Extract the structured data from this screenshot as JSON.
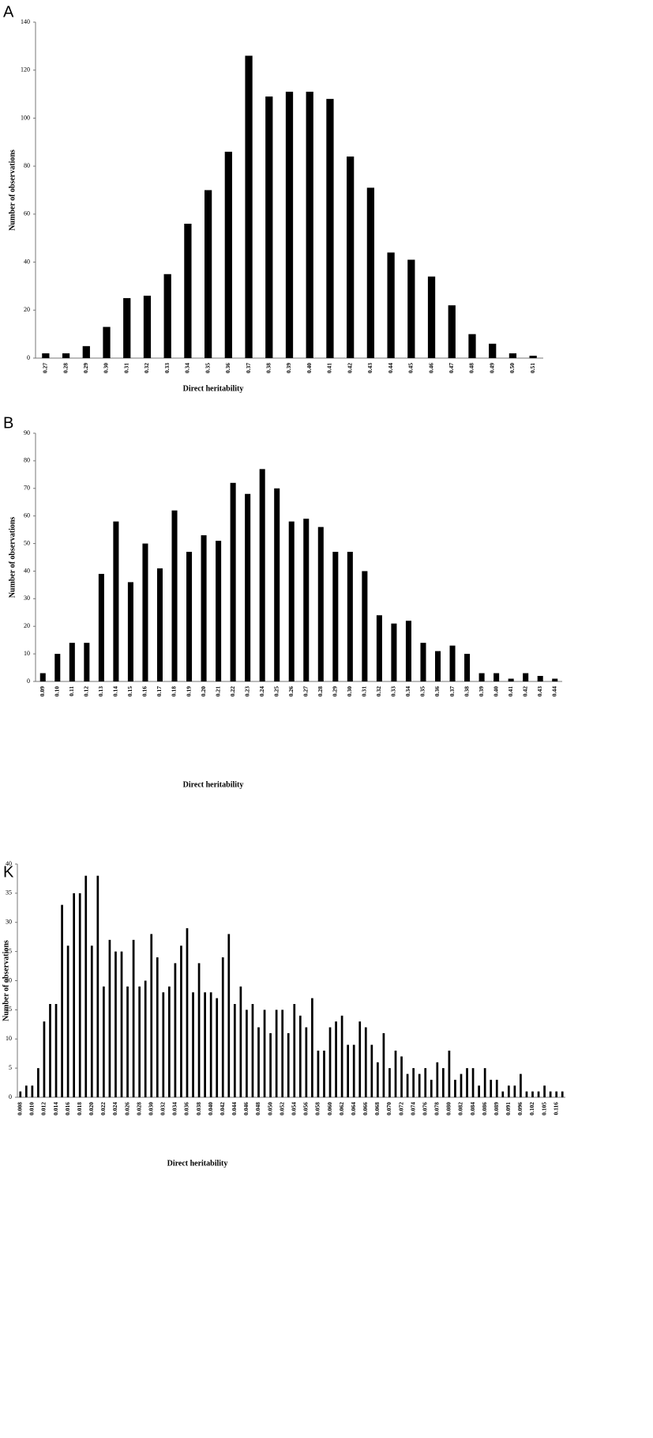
{
  "chart_data": [
    {
      "type": "bar",
      "title": "A",
      "xlabel": "Direct heritability",
      "ylabel": "Number of observations",
      "color": "#000000",
      "categories": [
        "0.27",
        "0.28",
        "0.29",
        "0.30",
        "0.31",
        "0.32",
        "0.33",
        "0.34",
        "0.35",
        "0.36",
        "0.37",
        "0.38",
        "0.39",
        "0.40",
        "0.41",
        "0.42",
        "0.43",
        "0.44",
        "0.45",
        "0.46",
        "0.47",
        "0.48",
        "0.49",
        "0.50",
        "0.51"
      ],
      "values": [
        2,
        2,
        5,
        13,
        25,
        26,
        35,
        56,
        70,
        86,
        126,
        109,
        111,
        111,
        108,
        84,
        71,
        44,
        41,
        34,
        22,
        10,
        6,
        2,
        1
      ],
      "ylim": [
        0,
        140
      ],
      "yticks": [
        0,
        20,
        40,
        60,
        80,
        100,
        120,
        140
      ]
    },
    {
      "type": "bar",
      "title": "B",
      "xlabel": "Direct heritability",
      "ylabel": "Number of observations",
      "color": "#000000",
      "categories": [
        "0.09",
        "0.10",
        "0.11",
        "0.12",
        "0.13",
        "0.14",
        "0.15",
        "0.16",
        "0.17",
        "0.18",
        "0.19",
        "0.20",
        "0.21",
        "0.22",
        "0.23",
        "0.24",
        "0.25",
        "0.26",
        "0.27",
        "0.28",
        "0.29",
        "0.30",
        "0.31",
        "0.32",
        "0.33",
        "0.34",
        "0.35",
        "0.36",
        "0.37",
        "0.38",
        "0.39",
        "0.40",
        "0.41",
        "0.42",
        "0.43",
        "0.44"
      ],
      "values": [
        3,
        10,
        14,
        14,
        39,
        58,
        36,
        50,
        41,
        62,
        47,
        53,
        51,
        72,
        68,
        77,
        70,
        58,
        59,
        56,
        47,
        47,
        40,
        24,
        21,
        22,
        14,
        11,
        13,
        10,
        3,
        3,
        1,
        3,
        2,
        1
      ],
      "ylim": [
        0,
        90
      ],
      "yticks": [
        0,
        10,
        20,
        30,
        40,
        50,
        60,
        70,
        80,
        90
      ]
    },
    {
      "type": "bar",
      "title": "K",
      "xlabel": "Direct heritability",
      "ylabel": "Number of observations",
      "color": "#000000",
      "categories": [
        "0.008",
        null,
        "0.010",
        null,
        "0.012",
        null,
        "0.014",
        null,
        "0.016",
        null,
        "0.018",
        null,
        "0.020",
        null,
        "0.022",
        null,
        "0.024",
        null,
        "0.026",
        null,
        "0.028",
        null,
        "0.030",
        null,
        "0.032",
        null,
        "0.034",
        null,
        "0.036",
        null,
        "0.038",
        null,
        "0.040",
        null,
        "0.042",
        null,
        "0.044",
        null,
        "0.046",
        null,
        "0.048",
        null,
        "0.050",
        null,
        "0.052",
        null,
        "0.054",
        null,
        "0.056",
        null,
        "0.058",
        null,
        "0.060",
        null,
        "0.062",
        null,
        "0.064",
        null,
        "0.066",
        null,
        "0.068",
        null,
        "0.070",
        null,
        "0.072",
        null,
        "0.074",
        null,
        "0.076",
        null,
        "0.078",
        null,
        "0.080",
        null,
        "0.082",
        null,
        "0.084",
        null,
        "0.086",
        null,
        "0.089",
        null,
        "0.091",
        null,
        "0.096",
        null,
        "0.102",
        null,
        "0.105",
        null,
        "0.116",
        null
      ],
      "values": [
        1,
        2,
        2,
        5,
        13,
        16,
        16,
        33,
        26,
        35,
        35,
        38,
        26,
        38,
        19,
        27,
        25,
        25,
        19,
        27,
        19,
        20,
        28,
        24,
        18,
        19,
        23,
        26,
        29,
        18,
        23,
        18,
        18,
        17,
        24,
        28,
        16,
        19,
        15,
        16,
        12,
        15,
        11,
        15,
        15,
        11,
        16,
        14,
        12,
        17,
        8,
        8,
        12,
        13,
        14,
        9,
        9,
        13,
        12,
        9,
        6,
        11,
        5,
        8,
        7,
        4,
        5,
        4,
        5,
        3,
        6,
        5,
        8,
        3,
        4,
        5,
        5,
        2,
        5,
        3,
        3,
        1,
        2,
        2,
        4,
        1,
        1,
        1,
        2,
        1,
        1,
        1
      ],
      "ylim": [
        0,
        40
      ],
      "yticks": [
        0,
        5,
        10,
        15,
        20,
        25,
        30,
        35,
        40
      ]
    }
  ]
}
